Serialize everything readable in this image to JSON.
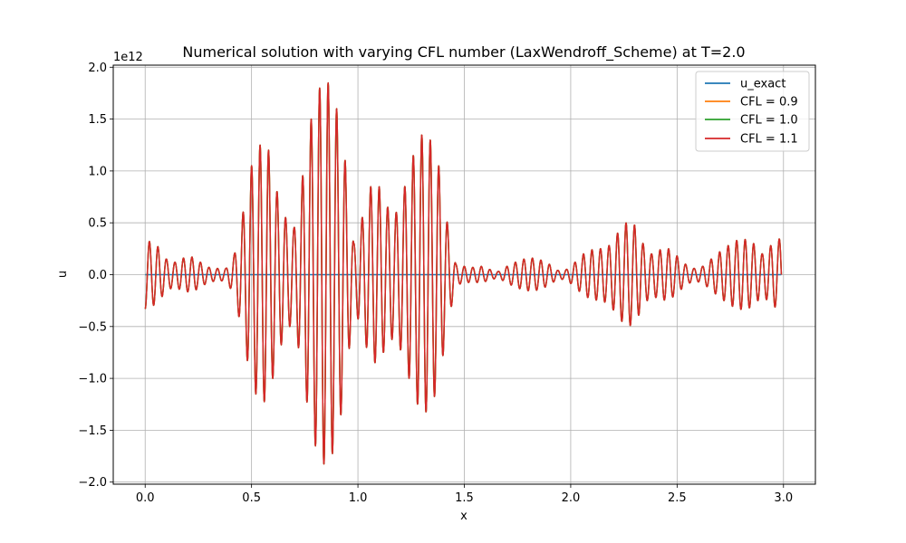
{
  "chart_data": {
    "type": "line",
    "title": "Numerical solution with varying CFL number (LaxWendroff_Scheme) at T=2.0",
    "xlabel": "x",
    "ylabel": "u",
    "y_offset_label": "1e12",
    "xlim": [
      -0.15,
      3.15
    ],
    "ylim": [
      -2.02,
      2.02
    ],
    "xticks": [
      0.0,
      0.5,
      1.0,
      1.5,
      2.0,
      2.5,
      3.0
    ],
    "xtick_labels": [
      "0.0",
      "0.5",
      "1.0",
      "1.5",
      "2.0",
      "2.5",
      "3.0"
    ],
    "yticks": [
      -2.0,
      -1.5,
      -1.0,
      -0.5,
      0.0,
      0.5,
      1.0,
      1.5,
      2.0
    ],
    "ytick_labels": [
      "−2.0",
      "−1.5",
      "−1.0",
      "−0.5",
      "0.0",
      "0.5",
      "1.0",
      "1.5",
      "2.0"
    ],
    "grid": true,
    "legend_position": "top-right",
    "series": [
      {
        "name": "u_exact",
        "color": "#1f77b4"
      },
      {
        "name": "CFL = 0.9",
        "color": "#ff7f0e"
      },
      {
        "name": "CFL = 1.0",
        "color": "#2ca02c"
      },
      {
        "name": "CFL = 1.1",
        "color": "#d62728"
      }
    ],
    "oscillation": {
      "x_range": [
        0.0,
        2.99
      ],
      "period_x": 0.04,
      "envelope": {
        "x": [
          0.0,
          0.02,
          0.06,
          0.1,
          0.14,
          0.18,
          0.22,
          0.26,
          0.3,
          0.34,
          0.38,
          0.42,
          0.46,
          0.5,
          0.54,
          0.58,
          0.62,
          0.66,
          0.7,
          0.74,
          0.78,
          0.82,
          0.86,
          0.9,
          0.94,
          0.98,
          1.02,
          1.06,
          1.1,
          1.14,
          1.18,
          1.22,
          1.26,
          1.3,
          1.34,
          1.38,
          1.42,
          1.46,
          1.5,
          1.54,
          1.58,
          1.62,
          1.66,
          1.7,
          1.74,
          1.78,
          1.82,
          1.86,
          1.9,
          1.94,
          1.98,
          2.02,
          2.06,
          2.1,
          2.14,
          2.18,
          2.22,
          2.26,
          2.3,
          2.34,
          2.38,
          2.42,
          2.46,
          2.5,
          2.54,
          2.58,
          2.62,
          2.66,
          2.7,
          2.74,
          2.78,
          2.82,
          2.86,
          2.9,
          2.94,
          2.99
        ],
        "amp": [
          0.33,
          0.32,
          0.27,
          0.15,
          0.12,
          0.16,
          0.17,
          0.12,
          0.07,
          0.06,
          0.06,
          0.2,
          0.6,
          1.05,
          1.25,
          1.2,
          0.8,
          0.55,
          0.45,
          0.95,
          1.5,
          1.8,
          1.85,
          1.6,
          1.1,
          0.3,
          0.55,
          0.85,
          0.85,
          0.65,
          0.6,
          0.85,
          1.15,
          1.35,
          1.3,
          1.05,
          0.5,
          0.1,
          0.08,
          0.07,
          0.08,
          0.05,
          0.03,
          0.08,
          0.12,
          0.15,
          0.16,
          0.14,
          0.1,
          0.04,
          0.05,
          0.12,
          0.2,
          0.24,
          0.25,
          0.28,
          0.4,
          0.5,
          0.48,
          0.3,
          0.2,
          0.24,
          0.25,
          0.18,
          0.1,
          0.06,
          0.08,
          0.15,
          0.22,
          0.28,
          0.33,
          0.34,
          0.3,
          0.2,
          0.28,
          0.36
        ]
      }
    }
  }
}
